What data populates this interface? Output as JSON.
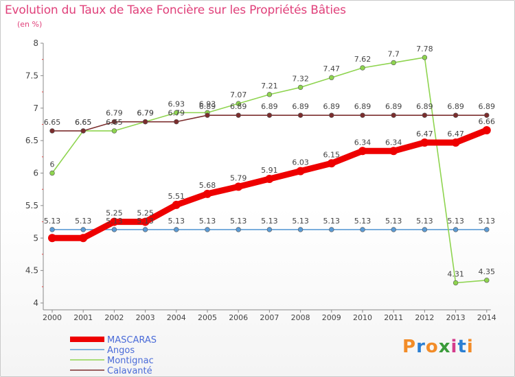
{
  "chart_data": {
    "type": "line",
    "title": "Evolution du Taux de Taxe Foncière sur les Propriétés Bâties",
    "ylabel": "(en %)",
    "xlabel": "",
    "ylim": [
      4,
      8
    ],
    "yticks": [
      "4",
      "4.5",
      "5",
      "5.5",
      "6",
      "6.5",
      "7",
      "7.5",
      "8"
    ],
    "categories": [
      "2000",
      "2001",
      "2002",
      "2003",
      "2004",
      "2005",
      "2006",
      "2007",
      "2008",
      "2009",
      "2010",
      "2011",
      "2012",
      "2013",
      "2014"
    ],
    "series": [
      {
        "name": "MASCARAS",
        "color": "#ee0000",
        "values": [
          5,
          5,
          5.25,
          5.25,
          5.51,
          5.68,
          5.79,
          5.91,
          6.03,
          6.15,
          6.34,
          6.34,
          6.47,
          6.47,
          6.66
        ],
        "labels": [
          "",
          "",
          "5.25",
          "5.25",
          "5.51",
          "5.68",
          "5.79",
          "5.91",
          "6.03",
          "6.15",
          "6.34",
          "6.34",
          "6.47",
          "6.47",
          "6.66"
        ]
      },
      {
        "name": "Angos",
        "color": "#5b9bd5",
        "values": [
          5.13,
          5.13,
          5.13,
          5.13,
          5.13,
          5.13,
          5.13,
          5.13,
          5.13,
          5.13,
          5.13,
          5.13,
          5.13,
          5.13,
          5.13
        ],
        "labels": [
          "5.13",
          "5.13",
          "5.13",
          "5.13",
          "5.13",
          "5.13",
          "5.13",
          "5.13",
          "5.13",
          "5.13",
          "5.13",
          "5.13",
          "5.13",
          "5.13",
          "5.13"
        ]
      },
      {
        "name": "Montignac",
        "color": "#8ed44f",
        "values": [
          6,
          6.65,
          6.65,
          6.79,
          6.93,
          6.93,
          7.07,
          7.21,
          7.32,
          7.47,
          7.62,
          7.7,
          7.78,
          4.31,
          4.35
        ],
        "labels": [
          "6",
          "6.65",
          "6.65",
          "6.79",
          "6.93",
          "6.93",
          "7.07",
          "7.21",
          "7.32",
          "7.47",
          "7.62",
          "7.7",
          "7.78",
          "4.31",
          "4.35"
        ]
      },
      {
        "name": "Calavanté",
        "color": "#7b2d2d",
        "values": [
          6.65,
          6.65,
          6.79,
          6.79,
          6.79,
          6.89,
          6.89,
          6.89,
          6.89,
          6.89,
          6.89,
          6.89,
          6.89,
          6.89,
          6.89
        ],
        "labels": [
          "6.65",
          "6.65",
          "6.79",
          "6.79",
          "6.79",
          "6.89",
          "6.89",
          "6.89",
          "6.89",
          "6.89",
          "6.89",
          "6.89",
          "6.89",
          "6.89",
          "6.89"
        ]
      }
    ]
  },
  "brand": {
    "name": "Proxiti",
    "letters": [
      "P",
      "r",
      "o",
      "x",
      "i",
      "t",
      "i"
    ],
    "colors": [
      "#f28c28",
      "#2b7fd3",
      "#f28c28",
      "#3a9b3a",
      "#d43c8c",
      "#2b7fd3",
      "#f28c28"
    ]
  },
  "colors": {
    "title": "#e0407a",
    "axis": "#888888",
    "tick": "#444444",
    "minor_tick": "#e04040"
  }
}
